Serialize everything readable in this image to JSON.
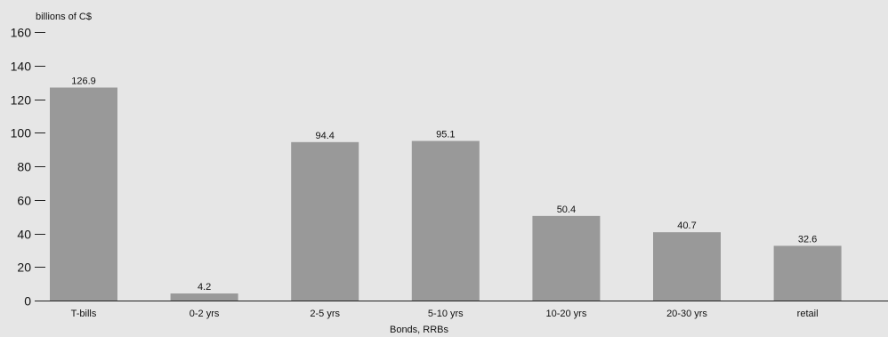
{
  "chart_data": {
    "type": "bar",
    "ylabel": "billions of C$",
    "xlabel": "Bonds, RRBs",
    "categories": [
      "T-bills",
      "0-2 yrs",
      "2-5 yrs",
      "5-10 yrs",
      "10-20 yrs",
      "20-30 yrs",
      "retail"
    ],
    "values": [
      126.9,
      4.2,
      94.4,
      95.1,
      50.4,
      40.7,
      32.6
    ],
    "data_labels": [
      "126.9",
      "4.2",
      "94.4",
      "95.1",
      "50.4",
      "40.7",
      "32.6"
    ],
    "ylim": [
      0,
      160
    ],
    "yticks": [
      0,
      20,
      40,
      60,
      80,
      100,
      120,
      140,
      160
    ],
    "grid": false,
    "legend": "none",
    "bar_color": "#999999",
    "background_color": "#e6e6e6"
  }
}
